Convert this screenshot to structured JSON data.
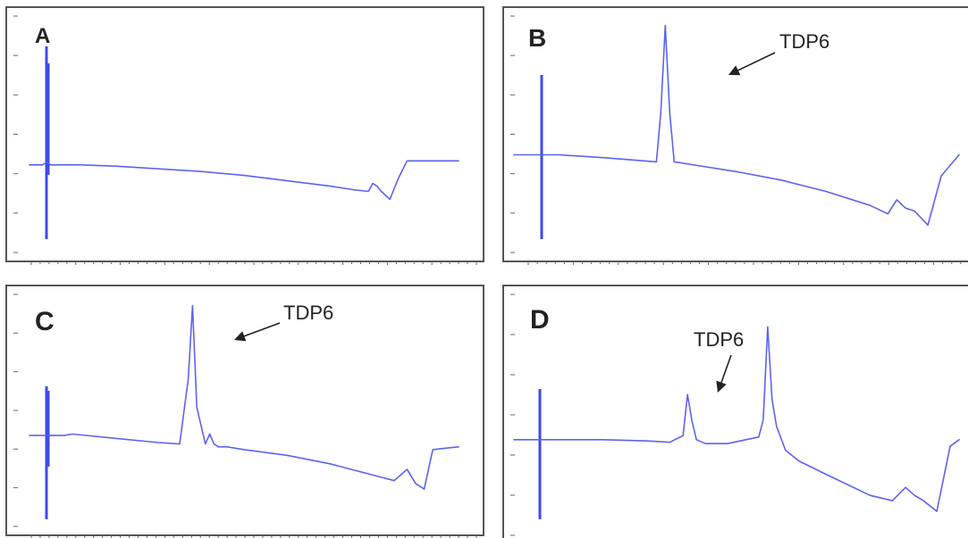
{
  "chart_data": [
    {
      "type": "line",
      "panel": "A",
      "series": [
        {
          "x": [
            0,
            3,
            4,
            5,
            8,
            12,
            20,
            30,
            40,
            50,
            60,
            70,
            76,
            79,
            80,
            81,
            82,
            84,
            86,
            88,
            100
          ],
          "y": [
            0,
            0,
            0.2,
            0,
            0,
            0,
            -0.1,
            -0.3,
            -0.5,
            -0.8,
            -1.2,
            -1.6,
            -1.9,
            -2.0,
            -1.4,
            -1.6,
            -2.0,
            -2.6,
            -1.0,
            0.3,
            0.3
          ]
        }
      ],
      "annotations": []
    },
    {
      "type": "line",
      "panel": "B",
      "series": [
        {
          "x": [
            0,
            3,
            5,
            8,
            10,
            15,
            20,
            28,
            32,
            33,
            34,
            35,
            36,
            38,
            40,
            50,
            60,
            70,
            80,
            84,
            86,
            88,
            90,
            93,
            96,
            100
          ],
          "y": [
            0,
            0,
            0,
            0,
            0,
            -0.1,
            -0.2,
            -0.4,
            -0.5,
            3.0,
            9.2,
            3.0,
            -0.5,
            -0.6,
            -0.7,
            -1.2,
            -1.8,
            -2.6,
            -3.6,
            -4.2,
            -3.2,
            -3.8,
            -4.0,
            -5.0,
            -1.5,
            0
          ]
        }
      ],
      "annotations": [
        {
          "text": "TDP6"
        }
      ]
    },
    {
      "type": "line",
      "panel": "C",
      "series": [
        {
          "x": [
            0,
            3,
            5,
            8,
            10,
            20,
            30,
            35,
            37,
            38,
            39,
            41,
            42,
            43,
            44,
            46,
            50,
            60,
            70,
            80,
            85,
            88,
            90,
            92,
            94,
            100
          ],
          "y": [
            0,
            0,
            0,
            0,
            0.1,
            -0.2,
            -0.5,
            -0.6,
            4.0,
            9.2,
            2.0,
            -0.6,
            0.1,
            -0.6,
            -0.8,
            -0.8,
            -1.0,
            -1.4,
            -2.0,
            -2.8,
            -3.2,
            -2.4,
            -3.4,
            -3.8,
            -1.0,
            -0.8
          ]
        }
      ],
      "annotations": [
        {
          "text": "TDP6"
        }
      ]
    },
    {
      "type": "line",
      "panel": "D",
      "series": [
        {
          "x": [
            0,
            5,
            10,
            20,
            30,
            35,
            38,
            39,
            40,
            41,
            43,
            48,
            55,
            56,
            57,
            58,
            59,
            61,
            64,
            70,
            80,
            85,
            88,
            90,
            92,
            95,
            98,
            100
          ],
          "y": [
            0,
            0,
            0,
            0,
            -0.1,
            -0.2,
            0.3,
            3.4,
            1.4,
            0,
            -0.3,
            -0.3,
            0.2,
            1.5,
            8.5,
            3.0,
            1.0,
            -0.8,
            -1.6,
            -2.6,
            -4.2,
            -4.6,
            -3.6,
            -4.2,
            -4.6,
            -5.4,
            -0.5,
            0
          ]
        }
      ],
      "annotations": [
        {
          "text": "TDP6"
        }
      ]
    }
  ]
}
